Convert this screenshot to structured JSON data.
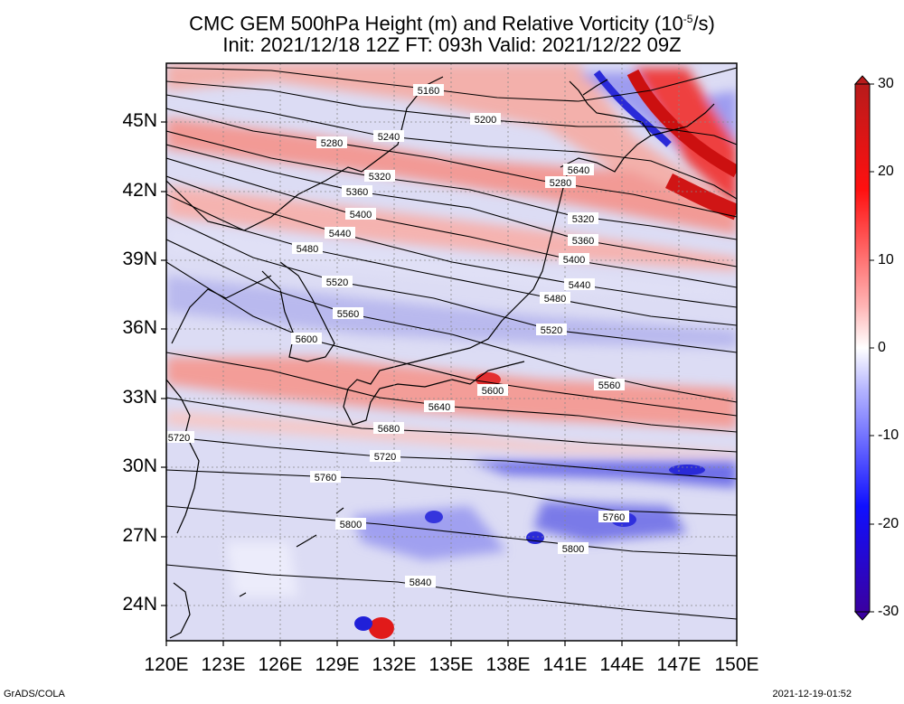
{
  "title": {
    "line1_pre": "CMC GEM 500hPa Height (m) and Relative Vorticity (10",
    "line1_exp": "-5",
    "line1_post": "/s)",
    "line2": "Init: 2021/12/18 12Z  FT: 093h  Valid: 2021/12/22 09Z"
  },
  "footer": {
    "left": "GrADS/COLA",
    "right": "2021-12-19-01:52"
  },
  "axes": {
    "lat_labels": [
      "45N",
      "42N",
      "39N",
      "36N",
      "33N",
      "30N",
      "27N",
      "24N"
    ],
    "lon_labels": [
      "120E",
      "123E",
      "126E",
      "129E",
      "132E",
      "135E",
      "138E",
      "141E",
      "144E",
      "147E",
      "150E"
    ]
  },
  "colorbar": {
    "labels": [
      "30",
      "20",
      "10",
      "0",
      "-10",
      "-20",
      "-30"
    ],
    "min": -30,
    "max": 30,
    "colors": {
      "neg_max": "#3a00a0",
      "neg": "#0000ff",
      "zero": "#ffffff",
      "pos": "#ff0000",
      "pos_max": "#b81b1b"
    }
  },
  "contours": [
    {
      "label": "5160"
    },
    {
      "label": "5200"
    },
    {
      "label": "5240"
    },
    {
      "label": "5280"
    },
    {
      "label": "5320"
    },
    {
      "label": "5360"
    },
    {
      "label": "5400"
    },
    {
      "label": "5440"
    },
    {
      "label": "5480"
    },
    {
      "label": "5520"
    },
    {
      "label": "5560"
    },
    {
      "label": "5600"
    },
    {
      "label": "5640"
    },
    {
      "label": "5680"
    },
    {
      "label": "5720"
    },
    {
      "label": "5760"
    },
    {
      "label": "5800"
    },
    {
      "label": "5840"
    }
  ]
}
